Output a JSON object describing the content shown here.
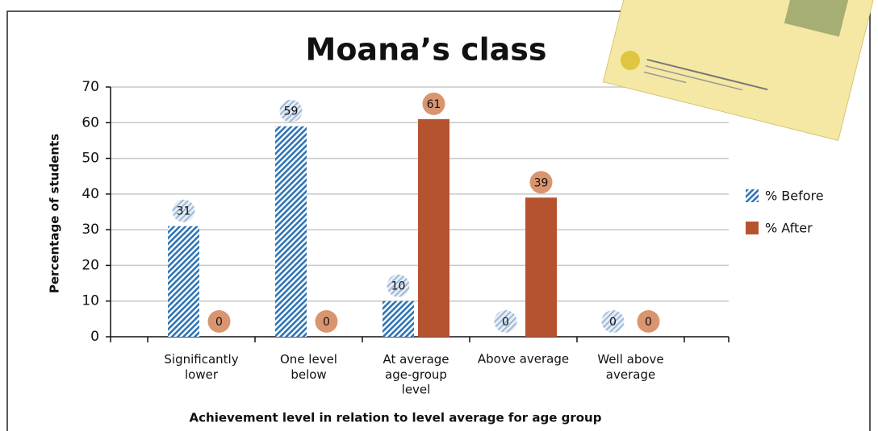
{
  "chart_data": {
    "type": "bar",
    "title": "Moana’s class",
    "y_label": "Percentage of students",
    "x_label": "Achievement level in relation to level average for age group",
    "categories": [
      "Significantly\nlower",
      "One level\nbelow",
      "At average\nage-group\nlevel",
      "Above average",
      "Well above\naverage"
    ],
    "series": [
      {
        "name": "% Before",
        "color": "#2f74b5",
        "values": [
          31,
          59,
          10,
          0,
          0
        ]
      },
      {
        "name": "% After",
        "color": "#b6532f",
        "values": [
          0,
          0,
          61,
          39,
          0
        ]
      }
    ],
    "ylim": [
      0,
      70
    ],
    "yticks": [
      0,
      10,
      20,
      30,
      40,
      50,
      60,
      70
    ],
    "grid": true,
    "legend": "right"
  }
}
